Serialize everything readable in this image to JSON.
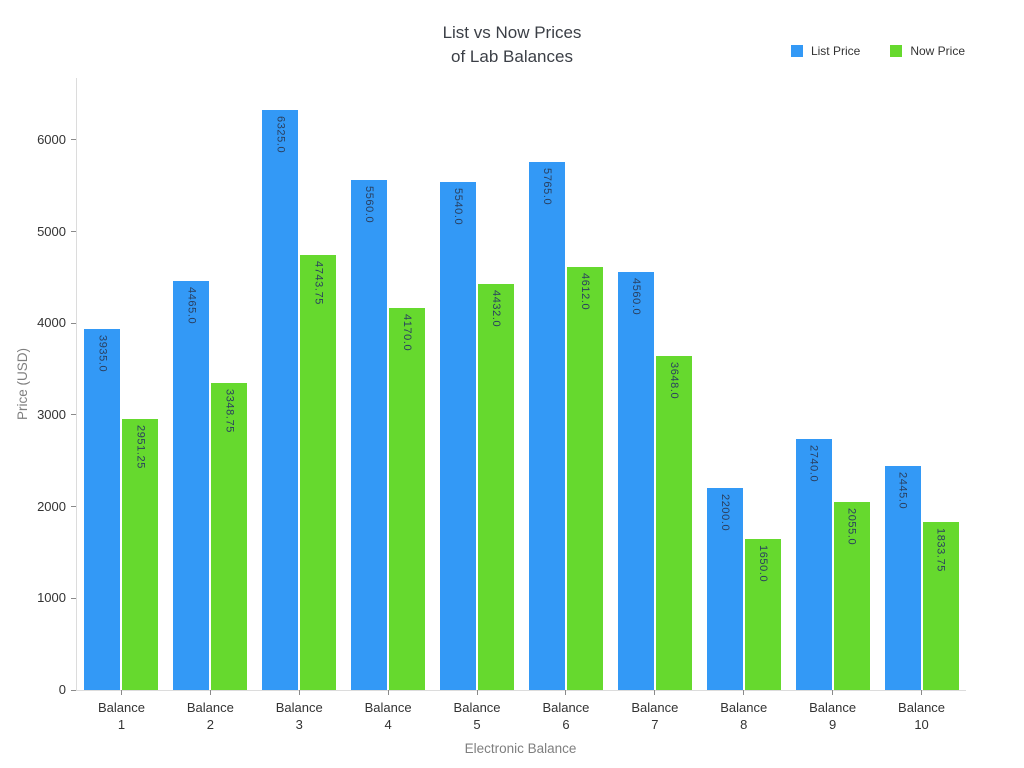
{
  "title": {
    "line1": "List vs Now Prices",
    "line2": "of Lab Balances"
  },
  "legend": {
    "items": [
      {
        "label": "List Price"
      },
      {
        "label": "Now Price"
      }
    ]
  },
  "axes": {
    "x_title": "Electronic Balance",
    "y_title": "Price (USD)"
  },
  "colors": {
    "list_price": "#3399f6",
    "now_price": "#66d92e",
    "bar_label_text": "#2a3f5f",
    "axis_line": "#dcdcdc",
    "axis_title_text": "#7f7f7f",
    "tick_text": "#333333"
  },
  "chart_data": {
    "type": "bar",
    "title": "List vs Now Prices of Lab Balances",
    "xlabel": "Electronic Balance",
    "ylabel": "Price (USD)",
    "categories": [
      "Balance 1",
      "Balance 2",
      "Balance 3",
      "Balance 4",
      "Balance 5",
      "Balance 6",
      "Balance 7",
      "Balance 8",
      "Balance 9",
      "Balance 10"
    ],
    "series": [
      {
        "name": "List Price",
        "color": "#3399f6",
        "values": [
          3935.0,
          4465.0,
          6325.0,
          5560.0,
          5540.0,
          5765.0,
          4560.0,
          2200.0,
          2740.0,
          2445.0
        ],
        "labels": [
          "3935.0",
          "4465.0",
          "6325.0",
          "5560.0",
          "5540.0",
          "5765.0",
          "4560.0",
          "2200.0",
          "2740.0",
          "2445.0"
        ]
      },
      {
        "name": "Now Price",
        "color": "#66d92e",
        "values": [
          2951.25,
          3348.75,
          4743.75,
          4170.0,
          4432.0,
          4612.0,
          3648.0,
          1650.0,
          2055.0,
          1833.75
        ],
        "labels": [
          "2951.25",
          "3348.75",
          "4743.75",
          "4170.0",
          "4432.0",
          "4612.0",
          "3648.0",
          "1650.0",
          "2055.0",
          "1833.75"
        ]
      }
    ],
    "yticks": [
      0,
      1000,
      2000,
      3000,
      4000,
      5000,
      6000
    ],
    "ylim": [
      0,
      6676
    ],
    "grid": false,
    "legend_position": "top-right",
    "bar_value_labels": "inside-top, rotated 90deg"
  }
}
